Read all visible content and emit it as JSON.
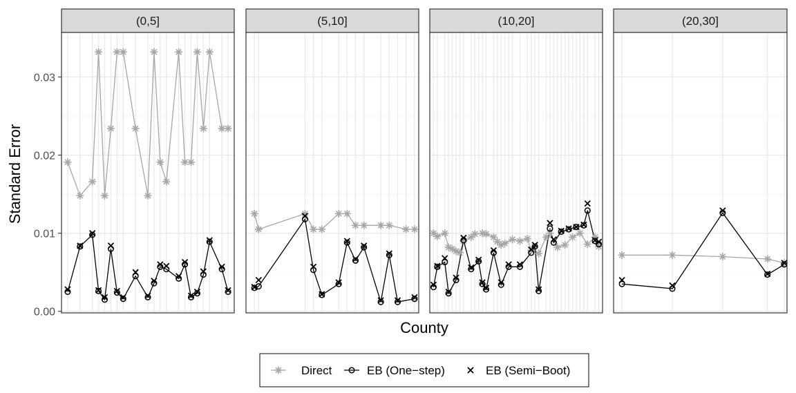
{
  "chart_data": {
    "type": "line",
    "ylabel": "Standard Error",
    "xlabel": "County",
    "ylim": [
      -0.0002,
      0.0357
    ],
    "yticks": [
      0.0,
      0.01,
      0.02,
      0.03
    ],
    "ytick_labels": [
      "0.00",
      "0.01",
      "0.02",
      "0.03"
    ],
    "grid": true,
    "legend_position": "bottom",
    "colors": {
      "direct": "#a6a6a6",
      "eb": "#000000",
      "strip_bg": "#d9d9d9",
      "grid": "#ebebeb"
    },
    "series_names": [
      "Direct",
      "EB (One−step)",
      "EB (Semi−Boot)"
    ],
    "facets": [
      {
        "label": "(0,5]",
        "xlim": [
          0,
          28
        ],
        "x": [
          1,
          3,
          5,
          6,
          7,
          8,
          9,
          10,
          12,
          14,
          15,
          16,
          17,
          19,
          20,
          21,
          22,
          23,
          24,
          26,
          27
        ],
        "direct": [
          0.0191,
          0.0148,
          0.0166,
          0.0332,
          0.0148,
          0.0234,
          0.0332,
          0.0332,
          0.0234,
          0.0148,
          0.0332,
          0.0191,
          0.0166,
          0.0332,
          0.0191,
          0.0191,
          0.0332,
          0.0234,
          0.0332,
          0.0234,
          0.0234
        ],
        "eb_one": [
          0.0025,
          0.0083,
          0.0098,
          0.0026,
          0.0015,
          0.008,
          0.0024,
          0.0016,
          0.0045,
          0.0018,
          0.0036,
          0.0057,
          0.0054,
          0.0042,
          0.006,
          0.0018,
          0.0023,
          0.0047,
          0.0089,
          0.0054,
          0.0025
        ],
        "eb_semi": [
          0.0028,
          0.0084,
          0.01,
          0.0027,
          0.0018,
          0.0084,
          0.0026,
          0.0018,
          0.005,
          0.002,
          0.0039,
          0.006,
          0.0058,
          0.0045,
          0.0063,
          0.002,
          0.0025,
          0.0051,
          0.0091,
          0.0057,
          0.0027
        ],
        "x_direct": [
          1,
          3,
          5,
          6,
          7,
          8,
          9,
          10,
          12,
          14,
          15,
          16,
          17,
          19,
          20,
          21,
          22,
          23,
          24,
          26,
          27
        ],
        "x_eb": [
          1,
          3,
          5,
          6,
          7,
          8,
          9,
          10,
          12,
          14,
          15,
          16,
          17,
          19,
          20,
          21,
          22,
          23,
          24,
          26,
          27
        ]
      },
      {
        "label": "(5,10]",
        "xlim": [
          0,
          20.5
        ],
        "x_direct": [
          1,
          1.5,
          7,
          8,
          9,
          11,
          12,
          13,
          14,
          16,
          17,
          19,
          20
        ],
        "direct": [
          0.0125,
          0.0105,
          0.0125,
          0.0105,
          0.0105,
          0.0125,
          0.0125,
          0.011,
          0.011,
          0.011,
          0.011,
          0.0105,
          0.0105
        ],
        "x_eb": [
          1,
          1.5,
          7,
          8,
          9,
          11,
          12,
          13,
          14,
          16,
          17,
          18,
          20
        ],
        "eb_one": [
          0.003,
          0.0032,
          0.0118,
          0.0053,
          0.0021,
          0.0035,
          0.0088,
          0.0065,
          0.0082,
          0.0012,
          0.0072,
          0.0012,
          0.0016
        ],
        "eb_semi": [
          0.0031,
          0.004,
          0.0122,
          0.0057,
          0.0022,
          0.0037,
          0.009,
          0.0067,
          0.0084,
          0.0014,
          0.0074,
          0.0014,
          0.0018
        ]
      },
      {
        "label": "(10,20]",
        "xlim": [
          0,
          46
        ],
        "x_direct": [
          1,
          2,
          4,
          5,
          6,
          7,
          8,
          9,
          11,
          12,
          14,
          15,
          17,
          18,
          19,
          20,
          22,
          24,
          26,
          27,
          29,
          31,
          32,
          34,
          36,
          38,
          40,
          42,
          44,
          45
        ],
        "direct": [
          0.01,
          0.0096,
          0.01,
          0.0082,
          0.008,
          0.0077,
          0.0075,
          0.009,
          0.0095,
          0.0099,
          0.01,
          0.0099,
          0.0095,
          0.0089,
          0.0085,
          0.0087,
          0.0092,
          0.009,
          0.0093,
          0.0078,
          0.0074,
          0.0095,
          0.01,
          0.0082,
          0.0085,
          0.0095,
          0.01,
          0.0086,
          0.0095,
          0.0083
        ],
        "x_eb": [
          1,
          2,
          4,
          5,
          7,
          9,
          11,
          13,
          14,
          15,
          17,
          19,
          21,
          24,
          27,
          28,
          29,
          32,
          33,
          35,
          37,
          39,
          41,
          42,
          44,
          45
        ],
        "eb_one": [
          0.0031,
          0.0057,
          0.0063,
          0.0023,
          0.004,
          0.0091,
          0.0054,
          0.0064,
          0.0035,
          0.0028,
          0.0075,
          0.0034,
          0.0057,
          0.0057,
          0.0075,
          0.0083,
          0.0026,
          0.0106,
          0.0088,
          0.0102,
          0.0105,
          0.0108,
          0.011,
          0.0129,
          0.009,
          0.0086
        ],
        "eb_semi": [
          0.0034,
          0.0058,
          0.0068,
          0.0025,
          0.0043,
          0.0094,
          0.0056,
          0.0066,
          0.0037,
          0.003,
          0.0078,
          0.0037,
          0.006,
          0.006,
          0.0079,
          0.0085,
          0.0028,
          0.0113,
          0.0092,
          0.0103,
          0.0106,
          0.0108,
          0.0111,
          0.0138,
          0.0091,
          0.0089
        ]
      },
      {
        "label": "(20,30]",
        "xlim": [
          0.5,
          31.5
        ],
        "x_direct": [
          2,
          11,
          20,
          28,
          31
        ],
        "direct": [
          0.0072,
          0.0072,
          0.007,
          0.0067,
          0.0062
        ],
        "x_eb": [
          2,
          11,
          20,
          28,
          31
        ],
        "eb_one": [
          0.0035,
          0.0029,
          0.0126,
          0.0047,
          0.006
        ],
        "eb_semi": [
          0.004,
          0.0033,
          0.0129,
          0.0048,
          0.0062
        ]
      }
    ]
  }
}
